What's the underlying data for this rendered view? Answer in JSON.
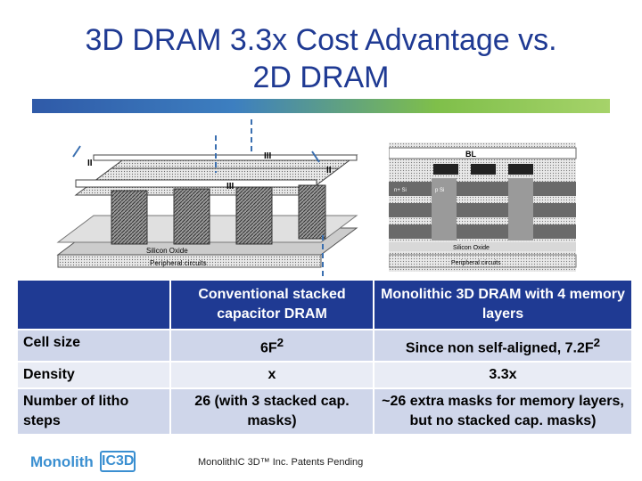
{
  "slide": {
    "title_line1": "3D DRAM 3.3x Cost Advantage vs.",
    "title_line2": "2D DRAM"
  },
  "figure_left": {
    "labels": {
      "section_ii_left": "II",
      "section_iii_top": "III",
      "section_ii_right": "II",
      "section_iii_mid": "III",
      "silicon_oxide": "Silicon Oxide",
      "peripheral_circuits": "Peripheral circuits"
    }
  },
  "figure_right": {
    "labels": {
      "bl": "BL",
      "n_si": "n+ Si",
      "p_si": "p Si",
      "silicon_oxide": "Silicon Oxide",
      "peripheral_circuits": "Peripheral circuits"
    }
  },
  "table": {
    "header": {
      "col1": "",
      "col2": "Conventional stacked capacitor DRAM",
      "col3": "Monolithic 3D DRAM with 4 memory layers"
    },
    "rows": [
      {
        "label": "Cell size",
        "conventional": "6F",
        "conventional_sup": "2",
        "monolithic": "Since non self-aligned, 7.2F",
        "monolithic_sup": "2"
      },
      {
        "label": "Density",
        "conventional": "x",
        "monolithic": "3.3x"
      },
      {
        "label": "Number of litho steps",
        "conventional": "26 (with 3 stacked cap. masks)",
        "monolithic": "~26 extra masks for memory layers, but no stacked cap. masks)"
      }
    ]
  },
  "logo": {
    "text": "Monolith",
    "box": "IC3D"
  },
  "footer": {
    "text": "MonolithIC 3D™ Inc. Patents Pending"
  },
  "colors": {
    "title": "#1f3a93",
    "header_bg": "#1f3a93",
    "row_bg": "#cfd6ea",
    "logo": "#3a8fd1"
  }
}
